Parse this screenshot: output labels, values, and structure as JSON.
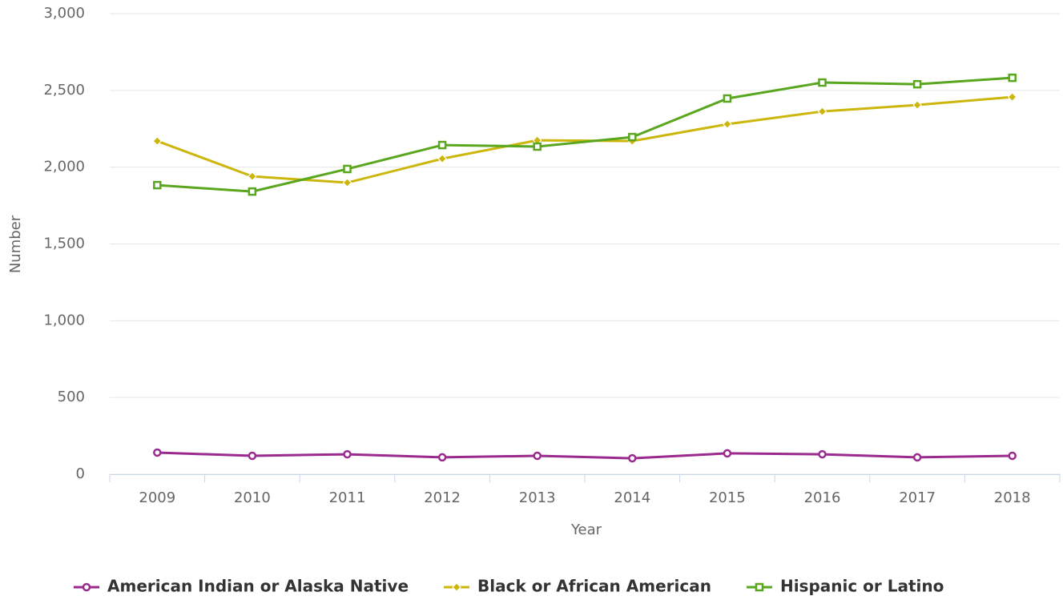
{
  "chart_data": {
    "type": "line",
    "x_label": "Year",
    "y_label": "Number",
    "categories": [
      "2009",
      "2010",
      "2011",
      "2012",
      "2013",
      "2014",
      "2015",
      "2016",
      "2017",
      "2018"
    ],
    "series": [
      {
        "name": "American Indian or Alaska Native",
        "color": "#9b2a8e",
        "marker": "circle",
        "values": [
          141,
          120,
          130,
          110,
          120,
          104,
          136,
          130,
          110,
          120
        ]
      },
      {
        "name": "Black or African American",
        "color": "#cdb60c",
        "marker": "diamond",
        "values": [
          2170,
          1940,
          1899,
          2055,
          2175,
          2170,
          2280,
          2363,
          2405,
          2457
        ]
      },
      {
        "name": "Hispanic or Latino",
        "color": "#5aa61f",
        "marker": "square",
        "values": [
          1883,
          1841,
          1988,
          2144,
          2134,
          2196,
          2447,
          2551,
          2540,
          2582
        ]
      }
    ],
    "ylim": [
      0,
      3000
    ],
    "yticks": [
      0,
      500,
      {
        "value": 1000,
        "label": "1,000"
      },
      {
        "value": 1500,
        "label": "1,500"
      },
      {
        "value": 2000,
        "label": "2,000"
      },
      {
        "value": 2500,
        "label": "2,500"
      },
      {
        "value": 3000,
        "label": "3,000"
      }
    ],
    "grid": true,
    "legend": "bottom"
  }
}
